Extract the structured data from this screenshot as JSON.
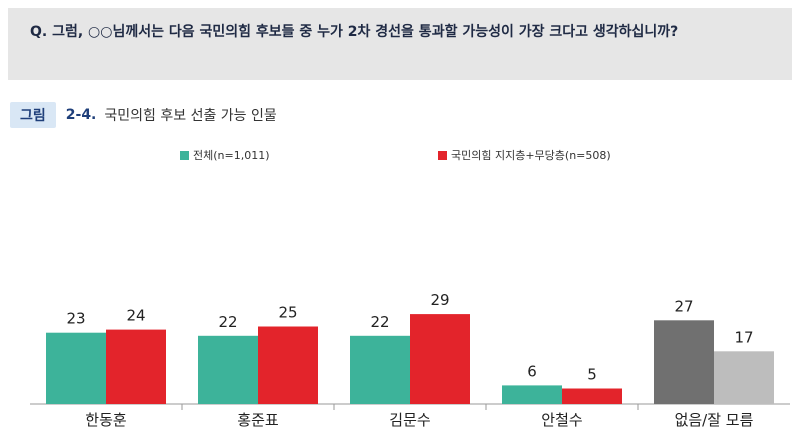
{
  "question": {
    "text": "Q. 그럼, ○○님께서는 다음 국민의힘 후보들 중 누가 2차 경선을 통과할 가능성이 가장 크다고 생각하십니까?"
  },
  "figure": {
    "tag": "그림",
    "number": "2-4.",
    "title": "국민의힘 후보 선출 가능 인물"
  },
  "chart_data": {
    "type": "bar",
    "categories": [
      "한동훈",
      "홍준표",
      "김문수",
      "안철수",
      "없음/잘 모름"
    ],
    "series": [
      {
        "name": "전체(n=1,011)",
        "values": [
          23,
          22,
          22,
          6,
          27
        ]
      },
      {
        "name": "국민의힘 지지층+무당층(n=508)",
        "values": [
          24,
          25,
          29,
          5,
          17
        ]
      }
    ],
    "colors": {
      "series_0": "#3db39a",
      "series_1": "#e3242b",
      "none_series_0": "#707070",
      "none_series_1": "#bdbdbd"
    },
    "ylim": [
      0,
      32
    ],
    "grid": false,
    "legend_position": "top-center"
  }
}
